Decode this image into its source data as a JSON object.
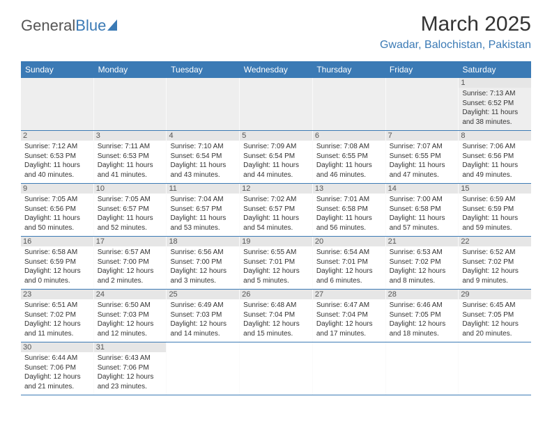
{
  "header": {
    "logo_part1": "General",
    "logo_part2": "Blue",
    "title": "March 2025",
    "location": "Gwadar, Balochistan, Pakistan"
  },
  "calendar": {
    "day_headers": [
      "Sunday",
      "Monday",
      "Tuesday",
      "Wednesday",
      "Thursday",
      "Friday",
      "Saturday"
    ],
    "header_bg": "#3b7ab5",
    "header_fg": "#ffffff",
    "row_divider": "#3b7ab5",
    "daynum_bg": "#e6e6e6",
    "weeks": [
      [
        null,
        null,
        null,
        null,
        null,
        null,
        {
          "n": "1",
          "sr": "Sunrise: 7:13 AM",
          "ss": "Sunset: 6:52 PM",
          "dl1": "Daylight: 11 hours",
          "dl2": "and 38 minutes."
        }
      ],
      [
        {
          "n": "2",
          "sr": "Sunrise: 7:12 AM",
          "ss": "Sunset: 6:53 PM",
          "dl1": "Daylight: 11 hours",
          "dl2": "and 40 minutes."
        },
        {
          "n": "3",
          "sr": "Sunrise: 7:11 AM",
          "ss": "Sunset: 6:53 PM",
          "dl1": "Daylight: 11 hours",
          "dl2": "and 41 minutes."
        },
        {
          "n": "4",
          "sr": "Sunrise: 7:10 AM",
          "ss": "Sunset: 6:54 PM",
          "dl1": "Daylight: 11 hours",
          "dl2": "and 43 minutes."
        },
        {
          "n": "5",
          "sr": "Sunrise: 7:09 AM",
          "ss": "Sunset: 6:54 PM",
          "dl1": "Daylight: 11 hours",
          "dl2": "and 44 minutes."
        },
        {
          "n": "6",
          "sr": "Sunrise: 7:08 AM",
          "ss": "Sunset: 6:55 PM",
          "dl1": "Daylight: 11 hours",
          "dl2": "and 46 minutes."
        },
        {
          "n": "7",
          "sr": "Sunrise: 7:07 AM",
          "ss": "Sunset: 6:55 PM",
          "dl1": "Daylight: 11 hours",
          "dl2": "and 47 minutes."
        },
        {
          "n": "8",
          "sr": "Sunrise: 7:06 AM",
          "ss": "Sunset: 6:56 PM",
          "dl1": "Daylight: 11 hours",
          "dl2": "and 49 minutes."
        }
      ],
      [
        {
          "n": "9",
          "sr": "Sunrise: 7:05 AM",
          "ss": "Sunset: 6:56 PM",
          "dl1": "Daylight: 11 hours",
          "dl2": "and 50 minutes."
        },
        {
          "n": "10",
          "sr": "Sunrise: 7:05 AM",
          "ss": "Sunset: 6:57 PM",
          "dl1": "Daylight: 11 hours",
          "dl2": "and 52 minutes."
        },
        {
          "n": "11",
          "sr": "Sunrise: 7:04 AM",
          "ss": "Sunset: 6:57 PM",
          "dl1": "Daylight: 11 hours",
          "dl2": "and 53 minutes."
        },
        {
          "n": "12",
          "sr": "Sunrise: 7:02 AM",
          "ss": "Sunset: 6:57 PM",
          "dl1": "Daylight: 11 hours",
          "dl2": "and 54 minutes."
        },
        {
          "n": "13",
          "sr": "Sunrise: 7:01 AM",
          "ss": "Sunset: 6:58 PM",
          "dl1": "Daylight: 11 hours",
          "dl2": "and 56 minutes."
        },
        {
          "n": "14",
          "sr": "Sunrise: 7:00 AM",
          "ss": "Sunset: 6:58 PM",
          "dl1": "Daylight: 11 hours",
          "dl2": "and 57 minutes."
        },
        {
          "n": "15",
          "sr": "Sunrise: 6:59 AM",
          "ss": "Sunset: 6:59 PM",
          "dl1": "Daylight: 11 hours",
          "dl2": "and 59 minutes."
        }
      ],
      [
        {
          "n": "16",
          "sr": "Sunrise: 6:58 AM",
          "ss": "Sunset: 6:59 PM",
          "dl1": "Daylight: 12 hours",
          "dl2": "and 0 minutes."
        },
        {
          "n": "17",
          "sr": "Sunrise: 6:57 AM",
          "ss": "Sunset: 7:00 PM",
          "dl1": "Daylight: 12 hours",
          "dl2": "and 2 minutes."
        },
        {
          "n": "18",
          "sr": "Sunrise: 6:56 AM",
          "ss": "Sunset: 7:00 PM",
          "dl1": "Daylight: 12 hours",
          "dl2": "and 3 minutes."
        },
        {
          "n": "19",
          "sr": "Sunrise: 6:55 AM",
          "ss": "Sunset: 7:01 PM",
          "dl1": "Daylight: 12 hours",
          "dl2": "and 5 minutes."
        },
        {
          "n": "20",
          "sr": "Sunrise: 6:54 AM",
          "ss": "Sunset: 7:01 PM",
          "dl1": "Daylight: 12 hours",
          "dl2": "and 6 minutes."
        },
        {
          "n": "21",
          "sr": "Sunrise: 6:53 AM",
          "ss": "Sunset: 7:02 PM",
          "dl1": "Daylight: 12 hours",
          "dl2": "and 8 minutes."
        },
        {
          "n": "22",
          "sr": "Sunrise: 6:52 AM",
          "ss": "Sunset: 7:02 PM",
          "dl1": "Daylight: 12 hours",
          "dl2": "and 9 minutes."
        }
      ],
      [
        {
          "n": "23",
          "sr": "Sunrise: 6:51 AM",
          "ss": "Sunset: 7:02 PM",
          "dl1": "Daylight: 12 hours",
          "dl2": "and 11 minutes."
        },
        {
          "n": "24",
          "sr": "Sunrise: 6:50 AM",
          "ss": "Sunset: 7:03 PM",
          "dl1": "Daylight: 12 hours",
          "dl2": "and 12 minutes."
        },
        {
          "n": "25",
          "sr": "Sunrise: 6:49 AM",
          "ss": "Sunset: 7:03 PM",
          "dl1": "Daylight: 12 hours",
          "dl2": "and 14 minutes."
        },
        {
          "n": "26",
          "sr": "Sunrise: 6:48 AM",
          "ss": "Sunset: 7:04 PM",
          "dl1": "Daylight: 12 hours",
          "dl2": "and 15 minutes."
        },
        {
          "n": "27",
          "sr": "Sunrise: 6:47 AM",
          "ss": "Sunset: 7:04 PM",
          "dl1": "Daylight: 12 hours",
          "dl2": "and 17 minutes."
        },
        {
          "n": "28",
          "sr": "Sunrise: 6:46 AM",
          "ss": "Sunset: 7:05 PM",
          "dl1": "Daylight: 12 hours",
          "dl2": "and 18 minutes."
        },
        {
          "n": "29",
          "sr": "Sunrise: 6:45 AM",
          "ss": "Sunset: 7:05 PM",
          "dl1": "Daylight: 12 hours",
          "dl2": "and 20 minutes."
        }
      ],
      [
        {
          "n": "30",
          "sr": "Sunrise: 6:44 AM",
          "ss": "Sunset: 7:06 PM",
          "dl1": "Daylight: 12 hours",
          "dl2": "and 21 minutes."
        },
        {
          "n": "31",
          "sr": "Sunrise: 6:43 AM",
          "ss": "Sunset: 7:06 PM",
          "dl1": "Daylight: 12 hours",
          "dl2": "and 23 minutes."
        },
        null,
        null,
        null,
        null,
        null
      ]
    ]
  }
}
